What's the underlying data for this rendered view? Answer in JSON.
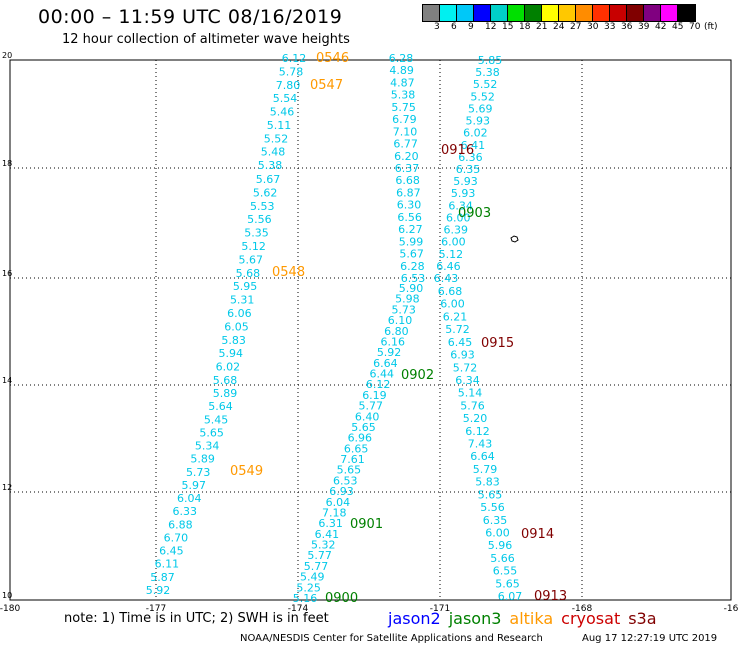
{
  "header": {
    "title": "00:00 – 11:59 UTC 08/16/2019",
    "subtitle": "12 hour collection of altimeter wave heights"
  },
  "colorbar": {
    "colors": [
      "#808080",
      "#00f0f0",
      "#00c8f8",
      "#0000ff",
      "#00d0c8",
      "#00e000",
      "#008000",
      "#ffff00",
      "#ffc800",
      "#ff8c00",
      "#ff3000",
      "#c80000",
      "#800000",
      "#800080",
      "#ff00ff",
      "#000000"
    ],
    "labels": [
      "3",
      "6",
      "9",
      "12",
      "15",
      "18",
      "21",
      "24",
      "27",
      "30",
      "33",
      "36",
      "39",
      "42",
      "45",
      "70",
      "(ft)"
    ]
  },
  "axes": {
    "x_labels": [
      "-180",
      "-177",
      "-174",
      "-171",
      "-168",
      "-16"
    ],
    "y_labels": [
      "20",
      "18",
      "16",
      "14",
      "12",
      "10"
    ]
  },
  "tracks": [
    {
      "id": "0546",
      "color": "#ff9900",
      "values": [
        "6.12",
        "5.78",
        "7.80",
        "5.54",
        "5.46",
        "5.11",
        "5.52",
        "5.48",
        "5.38"
      ]
    },
    {
      "id": "0547",
      "color": "#ff9900",
      "values": []
    },
    {
      "id": "0548",
      "color": "#ff9900",
      "values": [
        "5.67",
        "5.62",
        "5.53",
        "5.56",
        "5.35",
        "5.12",
        "5.67",
        "5.68",
        "5.95",
        "5.31",
        "6.06",
        "6.05",
        "5.83",
        "5.94",
        "6.02",
        "5.68"
      ]
    },
    {
      "id": "0549",
      "color": "#ff9900",
      "values": [
        "5.89",
        "5.64",
        "5.45",
        "5.65",
        "5.34",
        "5.89",
        "5.73",
        "5.97",
        "6.04",
        "6.33",
        "6.88",
        "6.70",
        "6.45",
        "6.11",
        "5.87",
        "5.92"
      ]
    },
    {
      "id": "0916",
      "color": "#800000",
      "values": [
        "6.28",
        "4.89",
        "4.87",
        "5.38",
        "5.75",
        "6.79",
        "7.10",
        "6.77",
        "6.20",
        "6.37",
        "6.68",
        "6.87",
        "6.30",
        "6.56",
        "6.27",
        "5.99",
        "5.67",
        "6.28",
        "6.53"
      ]
    },
    {
      "id": "0903",
      "color": "#008000",
      "values": [
        "5.85",
        "5.38",
        "5.52",
        "5.52",
        "5.69",
        "5.93",
        "6.02",
        "6.41",
        "6.36",
        "6.35",
        "5.93",
        "5.93",
        "6.34",
        "6.00",
        "6.39",
        "6.00",
        "5.12",
        "6.46",
        "6.43"
      ]
    },
    {
      "id": "0902",
      "color": "#008000",
      "values": [
        "5.90",
        "5.98",
        "5.73",
        "6.10",
        "6.80",
        "6.16",
        "5.92",
        "6.64",
        "6.44",
        "6.12",
        "6.19",
        "5.77",
        "6.40",
        "5.65",
        "6.96",
        "6.65",
        "7.61",
        "5.65",
        "6.53",
        "6.93",
        "6.04",
        "7.18",
        "6.31",
        "6.41",
        "5.32",
        "5.77",
        "5.77",
        "5.49",
        "5.25",
        "5.16"
      ]
    },
    {
      "id": "0915",
      "color": "#800000",
      "values": [
        "6.68",
        "6.00",
        "6.21",
        "5.72",
        "6.45",
        "6.93",
        "5.72",
        "6.34",
        "5.14",
        "5.76",
        "5.20",
        "6.12",
        "7.43",
        "6.64",
        "5.79",
        "5.83",
        "5.65",
        "5.56",
        "6.35",
        "6.00",
        "5.96",
        "5.66",
        "6.55",
        "5.65",
        "6.07"
      ]
    },
    {
      "id": "0901",
      "color": "#008000",
      "values": []
    },
    {
      "id": "0900",
      "color": "#008000",
      "values": []
    },
    {
      "id": "0914",
      "color": "#800000",
      "values": []
    },
    {
      "id": "0913",
      "color": "#800000",
      "values": []
    }
  ],
  "footer": {
    "note": "note: 1) Time is in UTC; 2) SWH is in feet",
    "satellites": [
      {
        "name": "jason2",
        "color": "#0000ff"
      },
      {
        "name": "jason3",
        "color": "#008000"
      },
      {
        "name": "altika",
        "color": "#ff9900"
      },
      {
        "name": "cryosat",
        "color": "#cc0000"
      },
      {
        "name": "s3a",
        "color": "#800000"
      }
    ],
    "credit": "NOAA/NESDIS Center for Satellite Applications and Research",
    "timestamp": "Aug 17 12:27:19 UTC 2019"
  },
  "colors": {
    "value_text": "#00c8e8"
  }
}
